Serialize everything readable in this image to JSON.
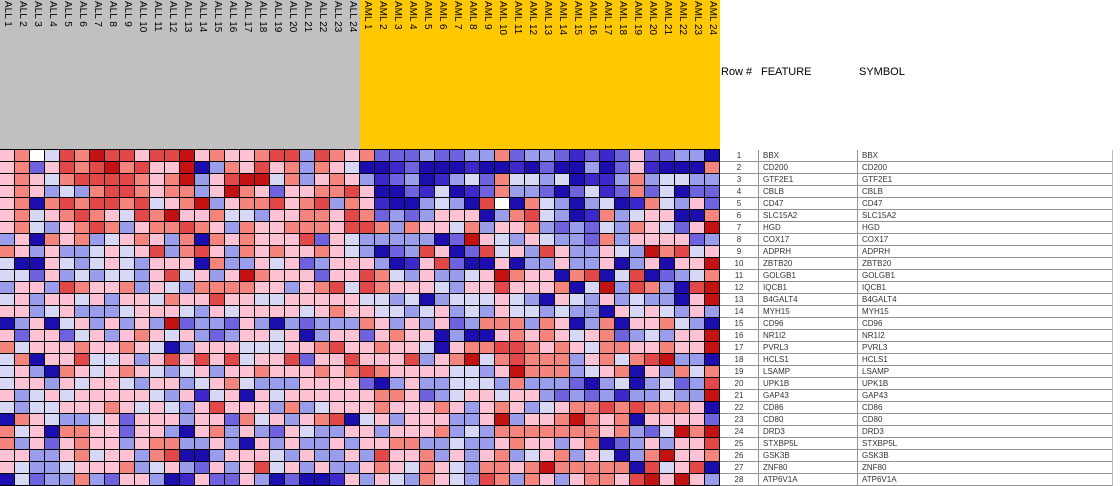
{
  "table": {
    "headers": [
      "Row #",
      "FEATURE",
      "SYMBOL"
    ],
    "rows": [
      {
        "num": "1",
        "feature": "BBX",
        "symbol": "BBX"
      },
      {
        "num": "2",
        "feature": "CD200",
        "symbol": "CD200"
      },
      {
        "num": "3",
        "feature": "GTF2E1",
        "symbol": "GTF2E1"
      },
      {
        "num": "4",
        "feature": "CBLB",
        "symbol": "CBLB"
      },
      {
        "num": "5",
        "feature": "CD47",
        "symbol": "CD47"
      },
      {
        "num": "6",
        "feature": "SLC15A2",
        "symbol": "SLC15A2"
      },
      {
        "num": "7",
        "feature": "HGD",
        "symbol": "HGD"
      },
      {
        "num": "8",
        "feature": "COX17",
        "symbol": "COX17"
      },
      {
        "num": "9",
        "feature": "ADPRH",
        "symbol": "ADPRH"
      },
      {
        "num": "10",
        "feature": "ZBTB20",
        "symbol": "ZBTB20"
      },
      {
        "num": "11",
        "feature": "GOLGB1",
        "symbol": "GOLGB1"
      },
      {
        "num": "12",
        "feature": "IQCB1",
        "symbol": "IQCB1"
      },
      {
        "num": "13",
        "feature": "B4GALT4",
        "symbol": "B4GALT4"
      },
      {
        "num": "14",
        "feature": "MYH15",
        "symbol": "MYH15"
      },
      {
        "num": "15",
        "feature": "CD96",
        "symbol": "CD96"
      },
      {
        "num": "16",
        "feature": "NR1I2",
        "symbol": "NR1I2"
      },
      {
        "num": "17",
        "feature": "PVRL3",
        "symbol": "PVRL3"
      },
      {
        "num": "18",
        "feature": "HCLS1",
        "symbol": "HCLS1"
      },
      {
        "num": "19",
        "feature": "LSAMP",
        "symbol": "LSAMP"
      },
      {
        "num": "20",
        "feature": "UPK1B",
        "symbol": "UPK1B"
      },
      {
        "num": "21",
        "feature": "GAP43",
        "symbol": "GAP43"
      },
      {
        "num": "22",
        "feature": "CD86",
        "symbol": "CD86"
      },
      {
        "num": "23",
        "feature": "CD80",
        "symbol": "CD80"
      },
      {
        "num": "24",
        "feature": "DRD3",
        "symbol": "DRD3"
      },
      {
        "num": "25",
        "feature": "STXBP5L",
        "symbol": "STXBP5L"
      },
      {
        "num": "26",
        "feature": "GSK3B",
        "symbol": "GSK3B"
      },
      {
        "num": "27",
        "feature": "ZNF80",
        "symbol": "ZNF80"
      },
      {
        "num": "28",
        "feature": "ATP6V1A",
        "symbol": "ATP6V1A"
      }
    ]
  },
  "chart_data": {
    "type": "heatmap",
    "columns": [
      "ALL 1",
      "ALL 2",
      "ALL 3",
      "ALL 4",
      "ALL 5",
      "ALL 6",
      "ALL 7",
      "ALL 8",
      "ALL 9",
      "ALL 10",
      "ALL 11",
      "ALL 12",
      "ALL 13",
      "ALL 14",
      "ALL 15",
      "ALL 16",
      "ALL 17",
      "ALL 18",
      "ALL 19",
      "ALL 20",
      "ALL 21",
      "ALL 22",
      "ALL 23",
      "ALL 24",
      "AML 1",
      "AML 2",
      "AML 3",
      "AML 4",
      "AML 5",
      "AML 6",
      "AML 7",
      "AML 8",
      "AML 9",
      "AML 10",
      "AML 11",
      "AML 12",
      "AML 13",
      "AML 14",
      "AML 15",
      "AML 16",
      "AML 17",
      "AML 18",
      "AML 19",
      "AML 20",
      "AML 21",
      "AML 22",
      "AML 23",
      "AML 24"
    ],
    "rows": [
      "BBX",
      "CD200",
      "GTF2E1",
      "CBLB",
      "CD47",
      "SLC15A2",
      "HGD",
      "COX17",
      "ADPRH",
      "ZBTB20",
      "GOLGB1",
      "IQCB1",
      "B4GALT4",
      "MYH15",
      "CD96",
      "NR1I2",
      "PVRL3",
      "HCLS1",
      "LSAMP",
      "UPK1B",
      "GAP43",
      "CD86",
      "CD80",
      "DRD3",
      "STXBP5L",
      "GSK3B",
      "ZNF80",
      "ATP6V1A"
    ],
    "column_groups": [
      {
        "label": "ALL",
        "count": 24,
        "band_color": "#C0C0C0"
      },
      {
        "label": "AML",
        "count": 24,
        "band_color": "#FFC800"
      }
    ],
    "palette": {
      "0": "#FFFFFF",
      "1": "#FFC2D4",
      "2": "#F5847C",
      "3": "#E34848",
      "4": "#C41212",
      "a": "#D6D8F5",
      "b": "#9A9CEC",
      "c": "#6E62DE",
      "d": "#3D28CC",
      "e": "#1C0EAE"
    },
    "palette_order_low_to_high": [
      "e",
      "d",
      "c",
      "b",
      "a",
      "0",
      "1",
      "2",
      "3",
      "4"
    ],
    "gridline_color": "#000000",
    "cells": [
      "120a3243313341211233b3212cccbccbb2cbbcdcdc1ccbbe",
      "12c1323423114eb21312b21aeedceeedeedeceebec1deee2",
      "121a233332124b1344a2b121bdcbedbac2aabaeddb2baabb",
      "121bab2332122b1421c112231eecdaedc2bbcecadc2caecc",
      "12e2323323a124b1223123b21deebabe30e2abebaed2ab1c",
      "12a12321a324112aab1122132cbcb111eb23abed2ba11ee2",
      "12ab1232b122321b2112221332b211a2b112bcbcab21ac14",
      "b1e212ba121b2e2121113c1abbbbbec41ab1abbc2b1111cb",
      "21b1bba1a13b231b2121121abecb31ec3a1b31bb1ab423a1",
      "aee1aba1ab111e2bb1a1cb111bed13cee1ebb1bb1eb1e114",
      "aac1babaab13a1b142111c1132ab1bba14211e23ea3ecba2",
      "b11b32112b1ab222211b123a32111ab1131112ea4b32be34",
      "a1b11a1b11a211311aa11111aabaebaaa1abe1ab1babbe14",
      "11ba1bbba111ab1a1111a1211aaba1bab1aababbe1a1ab1b",
      "eb1ea1b1b1b4cbbc1bebcbbb21b1b1cb222b21eb2e112abe",
      "1c11ca1b121a1bcb11a1eb11c1211ebee12121a12cbab114",
      "2a11121121aeb111aaa112311211ae122332121a22112114",
      "a2e113aa1b131313a113c1131113b124a23222b12a234bbe",
      "a1be21a121aba1b112111212321111aab14222ba12e1b2a2",
      "a11b1a11ab11ba12abbb1111ceb1bbaaab2bbbcebaebacb3",
      "1ba1a11111ab1da1e1a111111221cba11a11bcbcbdbbabb4",
      "abaa11121a1ab13111b2ba111211121b121ba1223232221e",
      "e21abba1c111b11c2a1b123ea1b111bb14b1124212e1111c",
      "2a1e2211c11be12b1bc1abb11b1112bab222222212bca424",
      "2b1c1211b122bb1be1b1bb1b1122bbabb1211b12ecb1b113",
      "11bb12a11b23eeb111ab1bb1b3112b1b12ba12b1aeb24112",
      "1abba1112ba1bc1b13a1b1bb121a21ab2212422222e3a13e",
      "eacbb2bc11bed1cc1beceed1b1ab21ab32b21b122134141b"
    ]
  }
}
